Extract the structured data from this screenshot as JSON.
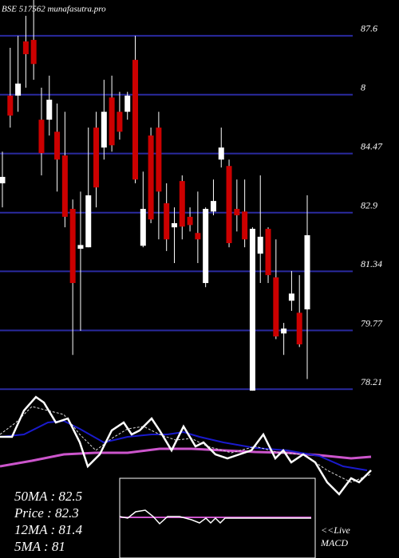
{
  "chart_data": {
    "type": "candlestick",
    "title": "BSE 517562 munafasutra.pro",
    "ylim": [
      77.96,
      88.55
    ],
    "yticks": [
      87.6,
      {
        "value": 86.035,
        "label": "8"
      },
      84.47,
      82.9,
      81.34,
      79.77,
      78.21
    ],
    "grid": true,
    "grid_color": "#2a2aa0",
    "up_color": "#ffffff",
    "down_color": "#cc0000",
    "open": [
      83.68,
      86.01,
      86.01,
      87.45,
      87.49,
      85.37,
      85.37,
      85.05,
      84.42,
      83.0,
      81.94,
      81.98,
      85.16,
      84.63,
      85.96,
      85.58,
      85.58,
      86.96,
      82.02,
      84.95,
      85.16,
      83.15,
      82.51,
      83.74,
      82.79,
      82.36,
      81.03,
      82.93,
      84.31,
      84.14,
      83.0,
      82.93,
      78.17,
      81.81,
      82.47,
      81.18,
      79.69,
      80.56,
      80.24,
      80.33
    ],
    "high": [
      84.52,
      87.28,
      87.6,
      88.13,
      88.55,
      86.22,
      86.54,
      85.8,
      85.58,
      83.25,
      83.46,
      85.16,
      85.58,
      86.43,
      86.54,
      86.11,
      86.11,
      87.6,
      83.99,
      85.16,
      85.58,
      83.68,
      83.04,
      83.89,
      83.04,
      83.46,
      83.04,
      83.78,
      85.16,
      84.31,
      83.78,
      83.78,
      82.51,
      83.89,
      82.51,
      82.19,
      79.97,
      81.35,
      81.24,
      83.36
    ],
    "low": [
      83.04,
      85.16,
      85.58,
      86.22,
      86.43,
      83.89,
      84.95,
      83.46,
      82.51,
      79.12,
      79.76,
      81.98,
      83.04,
      84.31,
      84.52,
      84.84,
      85.37,
      83.68,
      81.98,
      82.62,
      82.19,
      81.88,
      81.56,
      82.19,
      82.4,
      81.56,
      80.92,
      82.83,
      84.1,
      81.98,
      82.4,
      81.98,
      78.17,
      81.03,
      81.03,
      79.54,
      79.12,
      80.29,
      79.33,
      78.48
    ],
    "close": [
      83.85,
      85.48,
      86.33,
      87.11,
      86.85,
      84.48,
      85.9,
      84.31,
      82.79,
      81.03,
      82.04,
      83.36,
      83.57,
      85.58,
      84.69,
      85.05,
      86.01,
      83.78,
      83.0,
      82.72,
      83.46,
      82.19,
      82.62,
      82.53,
      82.57,
      82.19,
      83.0,
      83.21,
      84.63,
      82.09,
      82.83,
      82.19,
      82.47,
      82.26,
      81.24,
      79.61,
      79.82,
      80.75,
      79.4,
      82.3
    ],
    "info": [
      "50MA : 82.5",
      "Price  : 82.3",
      "12MA : 81.4",
      "5MA : 81"
    ],
    "macd_label": [
      "<<Live",
      "MACD"
    ]
  }
}
